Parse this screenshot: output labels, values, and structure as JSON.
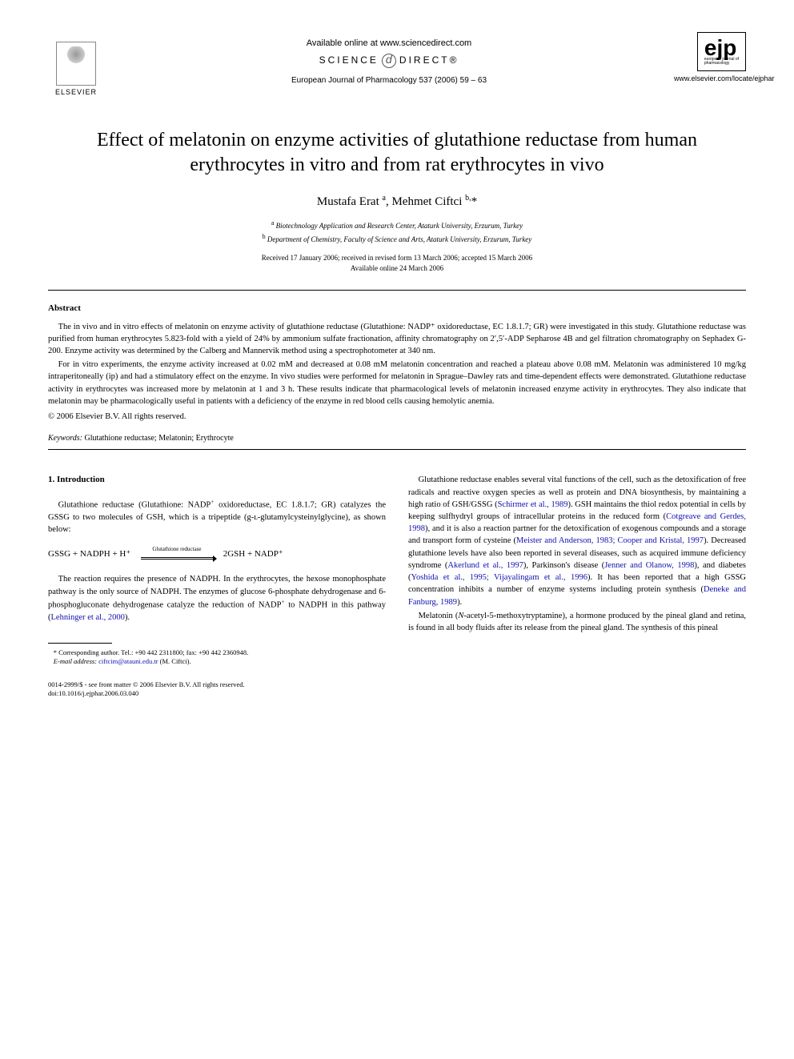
{
  "header": {
    "elsevier_label": "ELSEVIER",
    "available_online": "Available online at www.sciencedirect.com",
    "sciencedirect_left": "SCIENCE",
    "sciencedirect_right": "DIRECT®",
    "journal_reference": "European Journal of Pharmacology 537 (2006) 59 – 63",
    "ejp_letters": "ejp",
    "ejp_sub1": "european journal of",
    "ejp_sub2": "pharmacology",
    "locate_url": "www.elsevier.com/locate/ejphar"
  },
  "title": "Effect of melatonin on enzyme activities of glutathione reductase from human erythrocytes in vitro and from rat erythrocytes in vivo",
  "authors_html": "Mustafa Erat <sup>a</sup>, Mehmet Ciftci <sup>b,</sup>*",
  "affiliations": {
    "a": "Biotechnology Application and Research Center, Ataturk University, Erzurum, Turkey",
    "b": "Department of Chemistry, Faculty of Science and Arts, Ataturk University, Erzurum, Turkey"
  },
  "dates": {
    "received": "Received 17 January 2006; received in revised form 13 March 2006; accepted 15 March 2006",
    "available": "Available online 24 March 2006"
  },
  "abstract": {
    "heading": "Abstract",
    "p1": "The in vivo and in vitro effects of melatonin on enzyme activity of glutathione reductase (Glutathione: NADP⁺ oxidoreductase, EC 1.8.1.7; GR) were investigated in this study. Glutathione reductase was purified from human erythrocytes 5.823-fold with a yield of 24% by ammonium sulfate fractionation, affinity chromatography on 2′,5′-ADP Sepharose 4B and gel filtration chromatography on Sephadex G-200. Enzyme activity was determined by the Calberg and Mannervik method using a spectrophotometer at 340 nm.",
    "p2": "For in vitro experiments, the enzyme activity increased at 0.02 mM and decreased at 0.08 mM melatonin concentration and reached a plateau above 0.08 mM. Melatonin was administered 10 mg/kg intraperitoneally (ip) and had a stimulatory effect on the enzyme. In vivo studies were performed for melatonin in Sprague–Dawley rats and time-dependent effects were demonstrated. Glutathione reductase activity in erythrocytes was increased more by melatonin at 1 and 3 h. These results indicate that pharmacological levels of melatonin increased enzyme activity in erythrocytes. They also indicate that melatonin may be pharmacologically useful in patients with a deficiency of the enzyme in red blood cells causing hemolytic anemia.",
    "copyright": "© 2006 Elsevier B.V. All rights reserved."
  },
  "keywords": {
    "label": "Keywords:",
    "text": "Glutathione reductase; Melatonin; Erythrocyte"
  },
  "body": {
    "intro_heading": "1. Introduction",
    "left_p1_pre": "Glutathione reductase (Glutathione: NADP",
    "left_p1_post": " oxidoreductase, EC 1.8.1.7; GR) catalyzes the GSSG to two molecules of GSH, which is a tripeptide (g-ʟ-glutamylcysteinylglycine), as shown below:",
    "equation_left": "GSSG + NADPH + H⁺",
    "equation_label": "Glutathione reductase",
    "equation_right": "2GSH + NADP⁺",
    "left_p2_a": "The reaction requires the presence of NADPH. In the erythrocytes, the hexose monophosphate pathway is the only source of NADPH. The enzymes of glucose 6-phosphate dehydrogenase and 6-phosphogluconate dehydrogenase catalyze the reduction of NADP",
    "left_p2_b": " to NADPH in this pathway (",
    "ref_lehninger": "Lehninger et al., 2000",
    "left_p2_end": ").",
    "right_p1_a": "Glutathione reductase enables several vital functions of the cell, such as the detoxification of free radicals and reactive oxygen species as well as protein and DNA biosynthesis, by maintaining a high ratio of GSH/GSSG (",
    "ref_schirmer": "Schirmer et al., 1989",
    "right_p1_b": "). GSH maintains the thiol redox potential in cells by keeping sulfhydryl groups of intracellular proteins in the reduced form (",
    "ref_cotgreave": "Cotgreave and Gerdes, 1998",
    "right_p1_c": "), and it is also a reaction partner for the detoxification of exogenous compounds and a storage and transport form of cysteine (",
    "ref_meister": "Meister and Anderson, 1983; Cooper and Kristal, 1997",
    "right_p1_d": "). Decreased glutathione levels have also been reported in several diseases, such as acquired immune deficiency syndrome (",
    "ref_akerlund": "Akerlund et al., 1997",
    "right_p1_e": "), Parkinson's disease (",
    "ref_jenner": "Jenner and Olanow, 1998",
    "right_p1_f": "), and diabetes (",
    "ref_yoshida": "Yoshida et al., 1995; Vijayalingam et al., 1996",
    "right_p1_g": "). It has been reported that a high GSSG concentration inhibits a number of enzyme systems including protein synthesis (",
    "ref_deneke": "Deneke and Fanburg, 1989",
    "right_p1_h": ").",
    "right_p2": "Melatonin (N-acetyl-5-methoxytryptamine), a hormone produced by the pineal gland and retina, is found in all body fluids after its release from the pineal gland. The synthesis of this pineal"
  },
  "footnote": {
    "corresponding": "* Corresponding author. Tel.: +90 442 2311800; fax: +90 442 2360948.",
    "email_label": "E-mail address:",
    "email": "ciftcim@atauni.edu.tr",
    "email_who": "(M. Ciftci)."
  },
  "footer": {
    "line1": "0014-2999/$ - see front matter © 2006 Elsevier B.V. All rights reserved.",
    "line2": "doi:10.1016/j.ejphar.2006.03.040"
  },
  "colors": {
    "link": "#1010b0",
    "text": "#000000",
    "bg": "#ffffff"
  }
}
